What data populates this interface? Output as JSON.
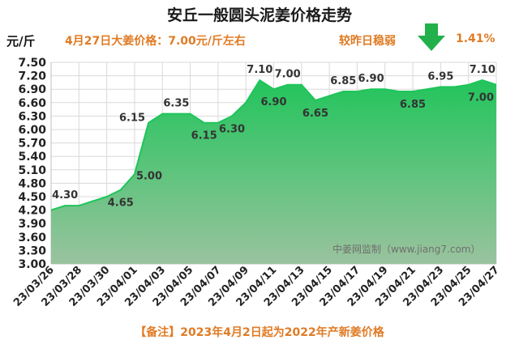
{
  "header": {
    "title": "安丘一般圆头泥姜价格走势",
    "unit": "元/斤",
    "price_note": "4月27日大姜价格：7.00元/斤左右",
    "change_text": "较昨日稳弱",
    "change_pct": "1.41%",
    "change_direction_icon": "down-arrow-icon"
  },
  "watermark": "中姜网监制（www.jiang7.com）",
  "footnote": "【备注】2023年4月2日起为2022年产新姜价格",
  "colors": {
    "fill_top": "#22c45c",
    "fill_bottom": "#9ac39e",
    "line": "#1ec55a",
    "accent": "#e07b24",
    "arrow": "#22b04a"
  },
  "chart_data": {
    "type": "area",
    "title": "安丘一般圆头泥姜价格走势",
    "ylabel": "元/斤",
    "ylim": [
      3.0,
      7.5
    ],
    "yticks": [
      "3.00",
      "3.30",
      "3.60",
      "3.90",
      "4.20",
      "4.50",
      "4.80",
      "5.10",
      "5.40",
      "5.70",
      "6.00",
      "6.30",
      "6.60",
      "6.90",
      "7.20",
      "7.50"
    ],
    "grid": true,
    "x_tick_labels": [
      "23/03/26",
      "23/03/28",
      "23/03/30",
      "23/04/01",
      "23/04/03",
      "23/04/05",
      "23/04/07",
      "23/04/09",
      "23/04/11",
      "23/04/13",
      "23/04/15",
      "23/04/17",
      "23/04/19",
      "23/04/21",
      "23/04/23",
      "23/04/25",
      "23/04/27"
    ],
    "points": [
      {
        "x": "2023-03-26",
        "y": 4.2
      },
      {
        "x": "2023-03-27",
        "y": 4.3
      },
      {
        "x": "2023-03-28",
        "y": 4.3
      },
      {
        "x": "2023-03-29",
        "y": 4.4
      },
      {
        "x": "2023-03-30",
        "y": 4.5
      },
      {
        "x": "2023-03-31",
        "y": 4.65
      },
      {
        "x": "2023-04-01",
        "y": 5.0
      },
      {
        "x": "2023-04-02",
        "y": 6.15
      },
      {
        "x": "2023-04-03",
        "y": 6.35
      },
      {
        "x": "2023-04-04",
        "y": 6.35
      },
      {
        "x": "2023-04-05",
        "y": 6.35
      },
      {
        "x": "2023-04-06",
        "y": 6.15
      },
      {
        "x": "2023-04-07",
        "y": 6.15
      },
      {
        "x": "2023-04-08",
        "y": 6.3
      },
      {
        "x": "2023-04-09",
        "y": 6.6
      },
      {
        "x": "2023-04-10",
        "y": 7.1
      },
      {
        "x": "2023-04-11",
        "y": 6.9
      },
      {
        "x": "2023-04-12",
        "y": 7.0
      },
      {
        "x": "2023-04-13",
        "y": 7.0
      },
      {
        "x": "2023-04-14",
        "y": 6.65
      },
      {
        "x": "2023-04-15",
        "y": 6.75
      },
      {
        "x": "2023-04-16",
        "y": 6.85
      },
      {
        "x": "2023-04-17",
        "y": 6.85
      },
      {
        "x": "2023-04-18",
        "y": 6.9
      },
      {
        "x": "2023-04-19",
        "y": 6.9
      },
      {
        "x": "2023-04-20",
        "y": 6.85
      },
      {
        "x": "2023-04-21",
        "y": 6.85
      },
      {
        "x": "2023-04-22",
        "y": 6.9
      },
      {
        "x": "2023-04-23",
        "y": 6.95
      },
      {
        "x": "2023-04-24",
        "y": 6.95
      },
      {
        "x": "2023-04-25",
        "y": 7.0
      },
      {
        "x": "2023-04-26",
        "y": 7.1
      },
      {
        "x": "2023-04-27",
        "y": 7.0
      }
    ],
    "data_labels": [
      {
        "x": "2023-03-27",
        "y": 4.3,
        "text": "4.30",
        "pos": "above"
      },
      {
        "x": "2023-03-31",
        "y": 4.65,
        "text": "4.65",
        "pos": "below"
      },
      {
        "x": "2023-04-01",
        "y": 5.0,
        "text": "5.00",
        "pos": "right"
      },
      {
        "x": "2023-04-02",
        "y": 6.15,
        "text": "6.15",
        "pos": "left"
      },
      {
        "x": "2023-04-04",
        "y": 6.35,
        "text": "6.35",
        "pos": "above"
      },
      {
        "x": "2023-04-06",
        "y": 6.15,
        "text": "6.15",
        "pos": "below"
      },
      {
        "x": "2023-04-08",
        "y": 6.3,
        "text": "6.30",
        "pos": "below"
      },
      {
        "x": "2023-04-10",
        "y": 7.1,
        "text": "7.10",
        "pos": "above"
      },
      {
        "x": "2023-04-11",
        "y": 6.9,
        "text": "6.90",
        "pos": "below"
      },
      {
        "x": "2023-04-12",
        "y": 7.0,
        "text": "7.00",
        "pos": "above"
      },
      {
        "x": "2023-04-14",
        "y": 6.65,
        "text": "6.65",
        "pos": "below"
      },
      {
        "x": "2023-04-16",
        "y": 6.85,
        "text": "6.85",
        "pos": "above"
      },
      {
        "x": "2023-04-18",
        "y": 6.9,
        "text": "6.90",
        "pos": "above"
      },
      {
        "x": "2023-04-21",
        "y": 6.85,
        "text": "6.85",
        "pos": "below"
      },
      {
        "x": "2023-04-23",
        "y": 6.95,
        "text": "6.95",
        "pos": "above"
      },
      {
        "x": "2023-04-26",
        "y": 7.1,
        "text": "7.10",
        "pos": "above"
      },
      {
        "x": "2023-04-27",
        "y": 7.0,
        "text": "7.00",
        "pos": "below-left"
      }
    ]
  }
}
